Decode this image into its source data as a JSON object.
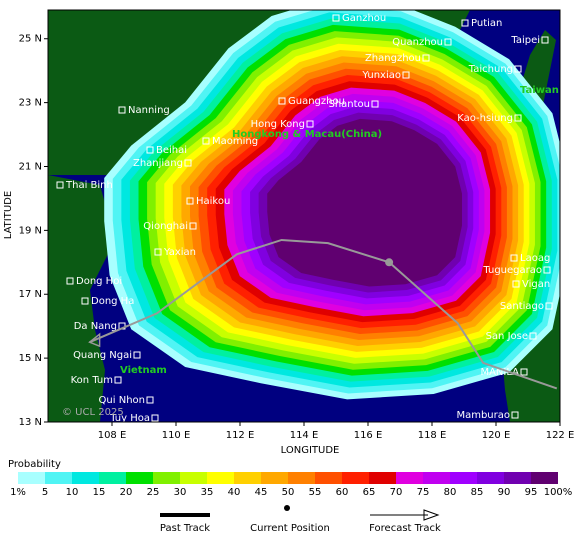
{
  "map": {
    "x_axis_label": "LONGITUDE",
    "y_axis_label": "LATITUDE",
    "xlim": [
      106,
      122
    ],
    "ylim": [
      13,
      25.9
    ],
    "xticks": [
      {
        "value": 108,
        "label": "108 E"
      },
      {
        "value": 110,
        "label": "110 E"
      },
      {
        "value": 112,
        "label": "112 E"
      },
      {
        "value": 114,
        "label": "114 E"
      },
      {
        "value": 116,
        "label": "116 E"
      },
      {
        "value": 118,
        "label": "118 E"
      },
      {
        "value": 120,
        "label": "120 E"
      },
      {
        "value": 122,
        "label": "122 E"
      }
    ],
    "yticks": [
      {
        "value": 13,
        "label": "13 N"
      },
      {
        "value": 15,
        "label": "15 N"
      },
      {
        "value": 17,
        "label": "17 N"
      },
      {
        "value": 19,
        "label": "19 N"
      },
      {
        "value": 21,
        "label": "21 N"
      },
      {
        "value": 23,
        "label": "23 N"
      },
      {
        "value": 25,
        "label": "25 N"
      }
    ],
    "cities": [
      "Ganzhou",
      "Putian",
      "Quanzhou",
      "Taipei",
      "Zhangzhou",
      "Yunxiao",
      "Taichung",
      "Nanning",
      "Guangzhou",
      "Shantou",
      "Hong Kong",
      "Maoming",
      "Kao-hsiung",
      "Beihai",
      "Zhanjiang",
      "Thai Binh",
      "Haikou",
      "Qionghai",
      "Yaxian",
      "Laoag",
      "Tuguegarao",
      "Vigan",
      "Dong Hoi",
      "Dong Ha",
      "Da Nang",
      "Santiago",
      "Quang Ngai",
      "San Jose",
      "Kon Tum",
      "MANILA",
      "Qui Nhon",
      "Tuy Hoa",
      "Mamburao"
    ],
    "regions": [
      "Vietnam",
      "Taiwan",
      "Hongkong & Macau(China)"
    ],
    "copyright": "© UCL 2025"
  },
  "track": {
    "lon": [
      107.3,
      109.4,
      111.9,
      113.3,
      114.75,
      116.66,
      118.8,
      119.6,
      121.9
    ],
    "lat": [
      15.5,
      16.4,
      18.25,
      18.7,
      18.6,
      18.0,
      16.1,
      14.85,
      14.05
    ]
  },
  "current": {
    "lon": 116.66,
    "lat": 18.0
  },
  "legend": {
    "title": "Probability",
    "colors": [
      "#a8ffff",
      "#50f4f4",
      "#00e8e0",
      "#00f0a0",
      "#00e000",
      "#80f000",
      "#c8ff00",
      "#ffff00",
      "#ffd000",
      "#ffa800",
      "#ff8000",
      "#ff5000",
      "#ff2000",
      "#e00000",
      "#e000e0",
      "#c000f0",
      "#a000ff",
      "#8000e0",
      "#7000b0",
      "#600070"
    ],
    "labels": [
      "1%",
      "5",
      "10",
      "15",
      "20",
      "25",
      "30",
      "35",
      "40",
      "45",
      "50",
      "55",
      "60",
      "65",
      "70",
      "75",
      "80",
      "85",
      "90",
      "95",
      "100%"
    ]
  },
  "track_legend": {
    "past": "Past Track",
    "current": "Current Position",
    "forecast": "Forecast Track"
  }
}
